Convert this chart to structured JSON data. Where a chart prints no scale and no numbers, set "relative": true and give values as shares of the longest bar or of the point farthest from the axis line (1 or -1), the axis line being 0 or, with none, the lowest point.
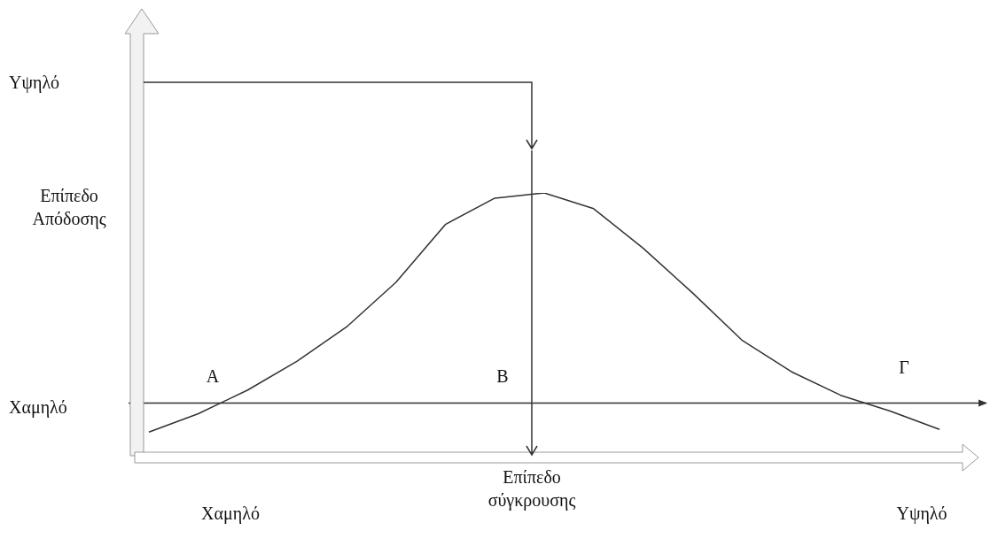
{
  "chart_data": {
    "type": "line",
    "relative": true,
    "xlabel": "Επίπεδο σύγκρουσης",
    "ylabel": "Επίπεδο Απόδοσης",
    "categories": [
      null,
      null,
      null,
      null,
      null,
      null,
      null,
      null,
      null,
      null,
      null,
      null,
      null,
      null,
      null,
      null,
      null
    ],
    "series": [
      {
        "color": "#333333",
        "values": [
          0.09,
          0.16,
          0.25,
          0.36,
          0.49,
          0.66,
          0.88,
          0.98,
          1.0,
          0.94,
          0.79,
          0.62,
          0.44,
          0.32,
          0.23,
          0.17,
          0.1
        ]
      }
    ],
    "ref_lines": [
      {
        "axis": "y",
        "value": 0.2,
        "color": "#333333"
      }
    ],
    "annotations": [
      "Υψηλό",
      "Χαμηλό",
      "Χαμηλό",
      "Υψηλό",
      "A",
      "B",
      "Γ"
    ],
    "marker": "none",
    "line_style": "solid",
    "legend": false
  }
}
